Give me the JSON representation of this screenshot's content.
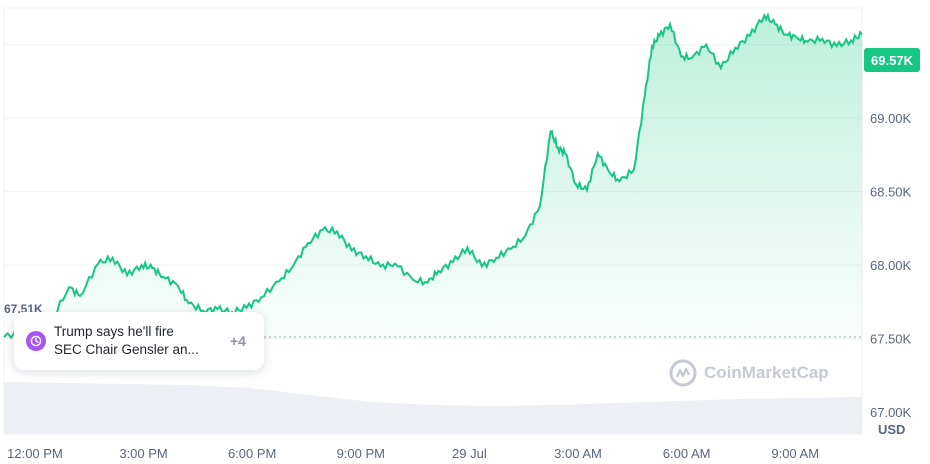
{
  "chart_data": {
    "type": "area",
    "currency": "USD",
    "y_ticks": [
      "69.00K",
      "68.50K",
      "68.00K",
      "67.50K",
      "67.00K"
    ],
    "y_tick_values": [
      69000,
      68500,
      68000,
      67500,
      67000
    ],
    "ylim": [
      66850,
      69750
    ],
    "x_ticks": [
      "12:00 PM",
      "3:00 PM",
      "6:00 PM",
      "9:00 PM",
      "29 Jul",
      "3:00 AM",
      "6:00 AM",
      "9:00 AM"
    ],
    "x_tick_hours": [
      0,
      3,
      6,
      9,
      12,
      15,
      18,
      21
    ],
    "xlim_hours": [
      -0.8,
      22.9
    ],
    "current_price_label": "69.57K",
    "current_price": 69570,
    "start_price_label": "67.51K",
    "start_price": 67510,
    "series": [
      {
        "values_hours": [
          -0.8,
          -0.2,
          0.5,
          1.0,
          1.3,
          1.8,
          2.2,
          2.6,
          3.0,
          3.3,
          3.6,
          4.0,
          4.3,
          4.7,
          5.1,
          5.5,
          5.9,
          6.3,
          6.8,
          7.2,
          7.6,
          8.0,
          8.4,
          8.8,
          9.2,
          9.6,
          10.0,
          10.5,
          10.9,
          11.2,
          11.6,
          12.0,
          12.4,
          12.8,
          13.2,
          13.6,
          14.0,
          14.3,
          14.5,
          14.7,
          15.0,
          15.3,
          15.6,
          15.9,
          16.2,
          16.6,
          16.9,
          17.1,
          17.3,
          17.6,
          17.9,
          18.2,
          18.6,
          19.0,
          19.4,
          19.8,
          20.2,
          20.5,
          20.8,
          21.1,
          21.4,
          21.8,
          22.2,
          22.6,
          22.9
        ],
        "values": [
          67510,
          67560,
          67620,
          67850,
          67790,
          68010,
          68050,
          67930,
          68000,
          67980,
          67920,
          67860,
          67740,
          67690,
          67700,
          67680,
          67710,
          67780,
          67890,
          68000,
          68150,
          68240,
          68230,
          68100,
          68060,
          67990,
          68010,
          67900,
          67880,
          67960,
          68020,
          68120,
          67990,
          68050,
          68110,
          68200,
          68400,
          68910,
          68800,
          68760,
          68550,
          68510,
          68760,
          68640,
          68570,
          68650,
          69150,
          69490,
          69560,
          69640,
          69420,
          69410,
          69500,
          69340,
          69480,
          69560,
          69700,
          69640,
          69570,
          69550,
          69520,
          69540,
          69490,
          69530,
          69570
        ]
      }
    ],
    "volume_note": ""
  },
  "news": {
    "title": "Trump says he'll fire SEC Chair Gensler an...",
    "title_line1": "Trump says he'll fire",
    "title_line2": "SEC Chair Gensler an...",
    "more_count": "+4"
  },
  "watermark": {
    "text": "CoinMarketCap"
  },
  "colors": {
    "line": "#16c784",
    "area_top": "#16c784",
    "badge": "#16c784",
    "grid": "#eff2f5",
    "news_icon": "#a855f7",
    "volume": "#eceff3"
  }
}
